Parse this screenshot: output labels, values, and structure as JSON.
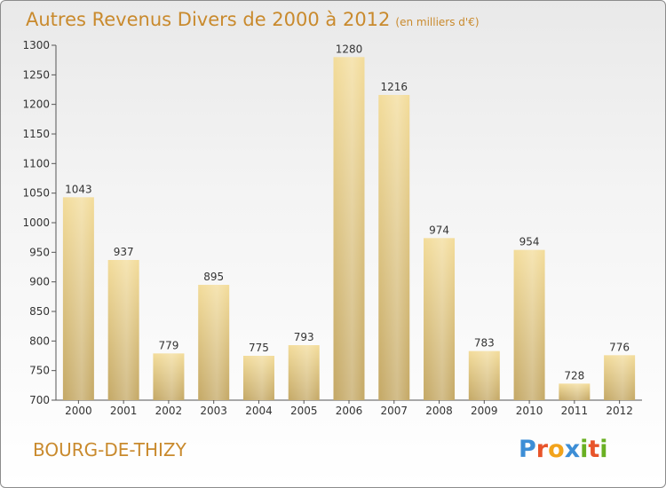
{
  "title": "Autres Revenus Divers de 2000 à 2012",
  "subtitle": "(en milliers d'€)",
  "town": "BOURG-DE-THIZY",
  "logo": {
    "letters": [
      "P",
      "r",
      "o",
      "x",
      "i",
      "t",
      "i"
    ],
    "colors": [
      "#3d8ed6",
      "#e8542a",
      "#f2a31b",
      "#3d8ed6",
      "#6ab023",
      "#e8542a",
      "#6ab023"
    ]
  },
  "colors": {
    "bar_top": "#f3dc9a",
    "bar_bottom": "#c4a865",
    "accent": "#c98a2d"
  },
  "chart_data": {
    "type": "bar",
    "title": "Autres Revenus Divers de 2000 à 2012",
    "subtitle": "(en milliers d'€)",
    "categories": [
      "2000",
      "2001",
      "2002",
      "2003",
      "2004",
      "2005",
      "2006",
      "2007",
      "2008",
      "2009",
      "2010",
      "2011",
      "2012"
    ],
    "values": [
      1043,
      937,
      779,
      895,
      775,
      793,
      1280,
      1216,
      974,
      783,
      954,
      728,
      776
    ],
    "ylim": [
      700,
      1300
    ],
    "yticks": [
      700,
      750,
      800,
      850,
      900,
      950,
      1000,
      1050,
      1100,
      1150,
      1200,
      1250,
      1300
    ],
    "grid": false,
    "xlabel": "",
    "ylabel": ""
  }
}
